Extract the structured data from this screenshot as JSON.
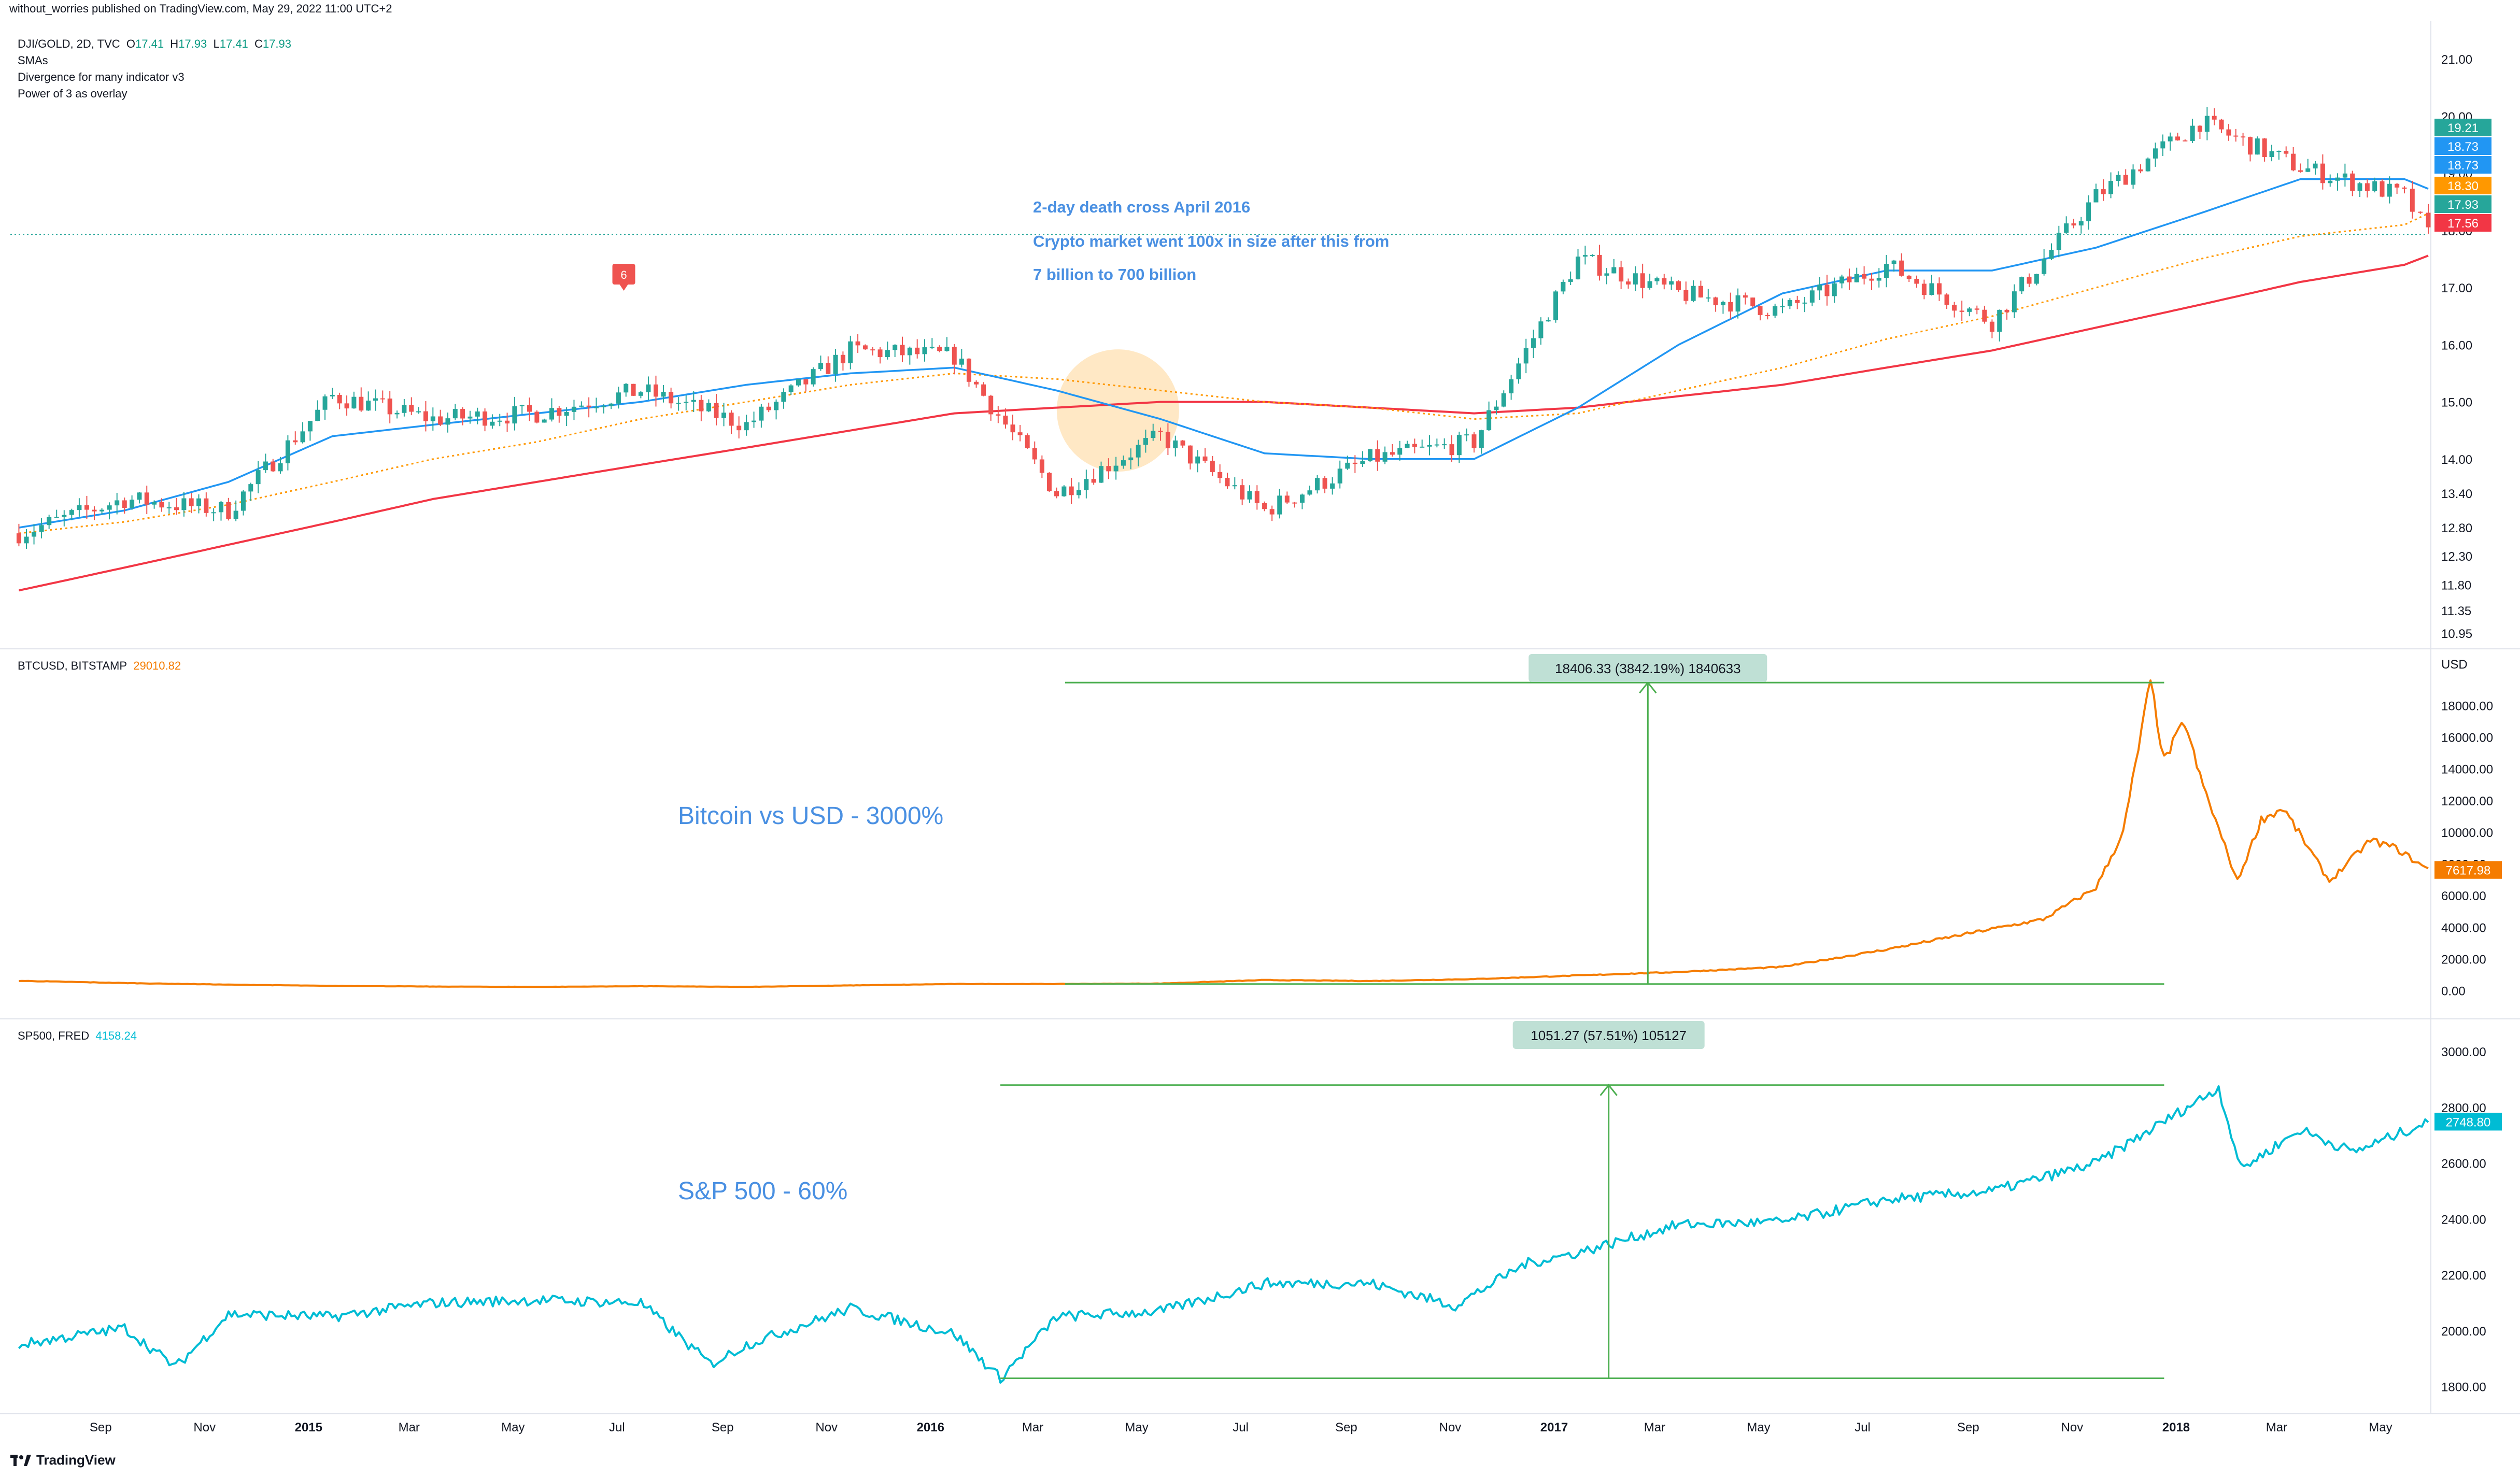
{
  "header": {
    "publisher": "without_worries published on TradingView.com, May 29, 2022 11:00 UTC+2",
    "symbol": "DJI/GOLD, 2D, TVC",
    "ohlc": {
      "o_label": "O",
      "o": "17.41",
      "h_label": "H",
      "h": "17.93",
      "l_label": "L",
      "l": "17.41",
      "c_label": "C",
      "c": "17.93"
    },
    "indicators": [
      "SMAs",
      "Divergence for many indicator v3",
      "Power of 3 as overlay"
    ]
  },
  "colors": {
    "up": "#26a69a",
    "down": "#ef5350",
    "sma_fast": "#2196f3",
    "sma_slow": "#f23645",
    "sma_mid": "#ff9800",
    "btc": "#f57c00",
    "spx": "#00bcd4",
    "measure": "#4caf50",
    "annotation": "#4a90e2",
    "circle": "#ffe0b2",
    "grid": "#e0e3eb"
  },
  "icons": [
    "tradingview-logo-icon",
    "divergence-marker-icon"
  ],
  "x_axis": {
    "labels": [
      "Sep",
      "Nov",
      "2015",
      "Mar",
      "May",
      "Jul",
      "Sep",
      "Nov",
      "2016",
      "Mar",
      "May",
      "Jul",
      "Sep",
      "Nov",
      "2017",
      "Mar",
      "May",
      "Jul",
      "Sep",
      "Nov",
      "2018",
      "Mar",
      "May"
    ]
  },
  "panes": {
    "dji_gold": {
      "axis_labels": [
        "21.00",
        "20.00",
        "19.00",
        "18.00",
        "17.00",
        "16.00",
        "15.00",
        "14.00",
        "13.40",
        "12.80",
        "12.30",
        "11.80",
        "11.35",
        "10.95"
      ],
      "price_tags": [
        {
          "value": "19.21",
          "color": "#26a69a"
        },
        {
          "value": "18.73",
          "color": "#2196f3"
        },
        {
          "value": "18.73",
          "color": "#2196f3"
        },
        {
          "value": "18.30",
          "color": "#ff9800"
        },
        {
          "value": "17.93",
          "color": "#26a69a"
        },
        {
          "value": "17.56",
          "color": "#f23645"
        }
      ],
      "annotations": [
        "2-day death cross April 2016",
        "Crypto market went 100x in size after this from",
        "7 billion to 700 billion"
      ],
      "divergence_marker": "6"
    },
    "btc": {
      "title": "BTCUSD, BITSTAMP",
      "value": "29010.82",
      "currency": "USD",
      "axis_labels": [
        "18000.00",
        "16000.00",
        "14000.00",
        "12000.00",
        "10000.00",
        "8000.00",
        "6000.00",
        "4000.00",
        "2000.00",
        "0.00"
      ],
      "last_tag": "7617.98",
      "measure_label": "18406.33 (3842.19%) 1840633",
      "caption": "Bitcoin vs USD - 3000%"
    },
    "spx": {
      "title": "SP500, FRED",
      "value": "4158.24",
      "axis_labels": [
        "3000.00",
        "2800.00",
        "2600.00",
        "2400.00",
        "2200.00",
        "2000.00",
        "1800.00"
      ],
      "last_tag": "2748.80",
      "measure_label": "1051.27 (57.51%) 105127",
      "caption": "S&P 500 - 60%"
    }
  },
  "footer": {
    "brand": "TradingView"
  },
  "chart_data": [
    {
      "type": "candlestick",
      "name": "DJI/GOLD",
      "note_series": [
        "price",
        "SMA fast",
        "SMA mid",
        "SMA slow"
      ],
      "x": [
        "2014-07",
        "2014-09",
        "2014-11",
        "2015-01",
        "2015-03",
        "2015-05",
        "2015-07",
        "2015-09",
        "2015-11",
        "2016-01",
        "2016-03",
        "2016-05",
        "2016-07",
        "2016-09",
        "2016-11",
        "2017-01",
        "2017-03",
        "2017-05",
        "2017-07",
        "2017-09",
        "2017-11",
        "2018-01",
        "2018-03",
        "2018-05",
        "2018-05-29"
      ],
      "close": [
        12.7,
        13.3,
        13.1,
        15.1,
        14.7,
        14.8,
        15.2,
        14.6,
        15.9,
        15.8,
        13.4,
        14.4,
        13.1,
        14.0,
        14.3,
        17.5,
        16.9,
        16.6,
        17.4,
        16.4,
        18.6,
        19.9,
        19.1,
        18.6,
        17.93
      ],
      "sma_fast": [
        12.8,
        13.1,
        13.6,
        14.4,
        14.6,
        14.8,
        15.0,
        15.3,
        15.5,
        15.6,
        15.2,
        14.7,
        14.1,
        14.0,
        14.0,
        14.9,
        16.0,
        16.9,
        17.3,
        17.3,
        17.7,
        18.3,
        18.9,
        18.9,
        18.73
      ],
      "sma_mid": [
        12.7,
        12.9,
        13.2,
        13.6,
        14.0,
        14.3,
        14.7,
        15.0,
        15.3,
        15.5,
        15.4,
        15.2,
        15.0,
        14.9,
        14.7,
        14.8,
        15.2,
        15.6,
        16.1,
        16.5,
        17.0,
        17.5,
        17.9,
        18.1,
        18.3
      ],
      "sma_slow": [
        11.7,
        12.1,
        12.5,
        12.9,
        13.3,
        13.6,
        13.9,
        14.2,
        14.5,
        14.8,
        14.9,
        15.0,
        15.0,
        14.9,
        14.8,
        14.9,
        15.1,
        15.3,
        15.6,
        15.9,
        16.3,
        16.7,
        17.1,
        17.4,
        17.56
      ],
      "ylim": [
        10.95,
        21.4
      ]
    },
    {
      "type": "line",
      "name": "BTCUSD",
      "x": [
        "2014-07",
        "2014-09",
        "2014-11",
        "2015-01",
        "2015-03",
        "2015-05",
        "2015-07",
        "2015-09",
        "2015-11",
        "2016-01",
        "2016-03",
        "2016-05",
        "2016-07",
        "2016-09",
        "2016-11",
        "2017-01",
        "2017-03",
        "2017-05",
        "2017-07",
        "2017-09",
        "2017-10",
        "2017-11",
        "2017-12-01",
        "2017-12-17",
        "2017-12-25",
        "2018-01-06",
        "2018-01-15",
        "2018-02-06",
        "2018-02-20",
        "2018-03-05",
        "2018-04-01",
        "2018-04-25",
        "2018-05-10",
        "2018-05-29"
      ],
      "y": [
        620,
        480,
        380,
        300,
        260,
        240,
        280,
        240,
        330,
        420,
        420,
        450,
        670,
        610,
        730,
        960,
        1180,
        1500,
        2600,
        3900,
        4500,
        6500,
        10000,
        19500,
        14500,
        17000,
        13500,
        6900,
        10800,
        11500,
        6900,
        9500,
        9000,
        7617.98
      ],
      "ylim": [
        -800,
        20600
      ]
    },
    {
      "type": "line",
      "name": "SP500",
      "x": [
        "2014-07",
        "2014-09",
        "2014-10-15",
        "2014-11",
        "2015-01",
        "2015-03",
        "2015-05",
        "2015-07",
        "2015-08-25",
        "2015-09",
        "2015-11",
        "2016-01",
        "2016-02-11",
        "2016-03",
        "2016-05",
        "2016-07",
        "2016-09",
        "2016-11-04",
        "2016-12",
        "2017-01",
        "2017-03",
        "2017-05",
        "2017-07",
        "2017-09",
        "2017-11",
        "2018-01-26",
        "2018-02-08",
        "2018-03",
        "2018-04",
        "2018-05-29"
      ],
      "y": [
        1950,
        2010,
        1870,
        2060,
        2050,
        2100,
        2110,
        2100,
        1880,
        1950,
        2080,
        1990,
        1830,
        2050,
        2070,
        2170,
        2170,
        2090,
        2240,
        2280,
        2380,
        2390,
        2470,
        2500,
        2600,
        2870,
        2580,
        2720,
        2640,
        2748.8
      ],
      "ylim": [
        1740,
        3080
      ]
    }
  ]
}
